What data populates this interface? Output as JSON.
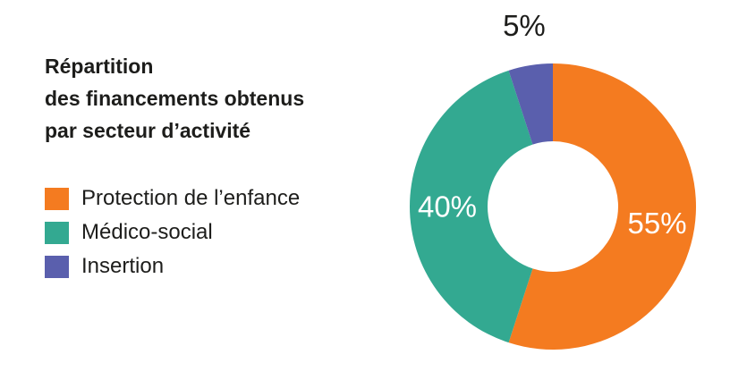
{
  "chart_data": {
    "type": "pie",
    "variant": "donut",
    "title_lines": [
      "Répartition",
      "des financements obtenus",
      "par secteur d’activité"
    ],
    "legend_position": "left",
    "slices": [
      {
        "name": "Protection de l’enfance",
        "value": 55,
        "label": "55%",
        "color": "#f47b20",
        "label_color": "#ffffff"
      },
      {
        "name": "Médico-social",
        "value": 40,
        "label": "40%",
        "color": "#33a991",
        "label_color": "#ffffff"
      },
      {
        "name": "Insertion",
        "value": 5,
        "label": "5%",
        "color": "#5a5fad",
        "label_color": "#1d1d1b"
      }
    ]
  }
}
